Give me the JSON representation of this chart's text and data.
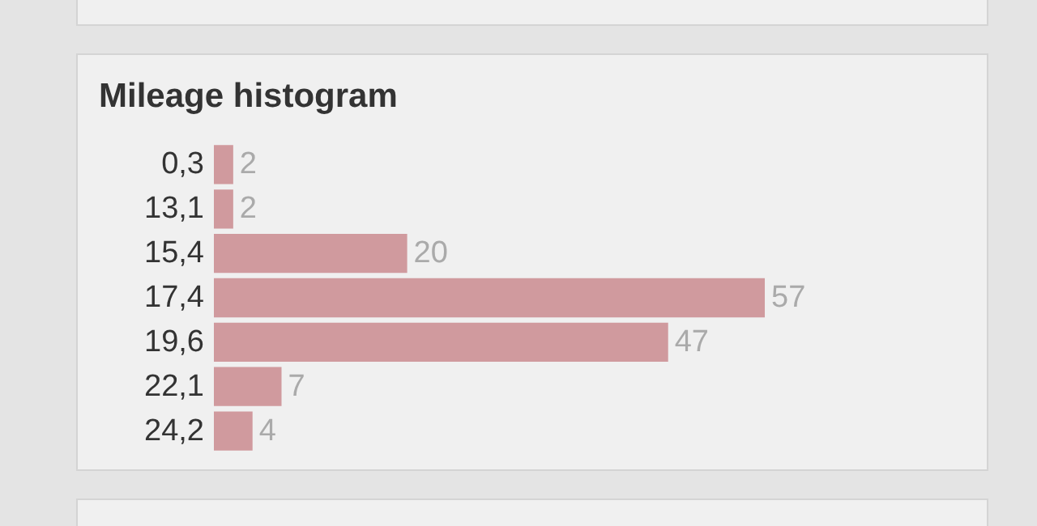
{
  "chart_data": {
    "type": "bar",
    "orientation": "horizontal",
    "title": "Mileage histogram",
    "categories": [
      "0,3",
      "13,1",
      "15,4",
      "17,4",
      "19,6",
      "22,1",
      "24,2"
    ],
    "values": [
      2,
      2,
      20,
      57,
      47,
      7,
      4
    ],
    "color": "#d09a9e",
    "data_labels": true
  }
}
